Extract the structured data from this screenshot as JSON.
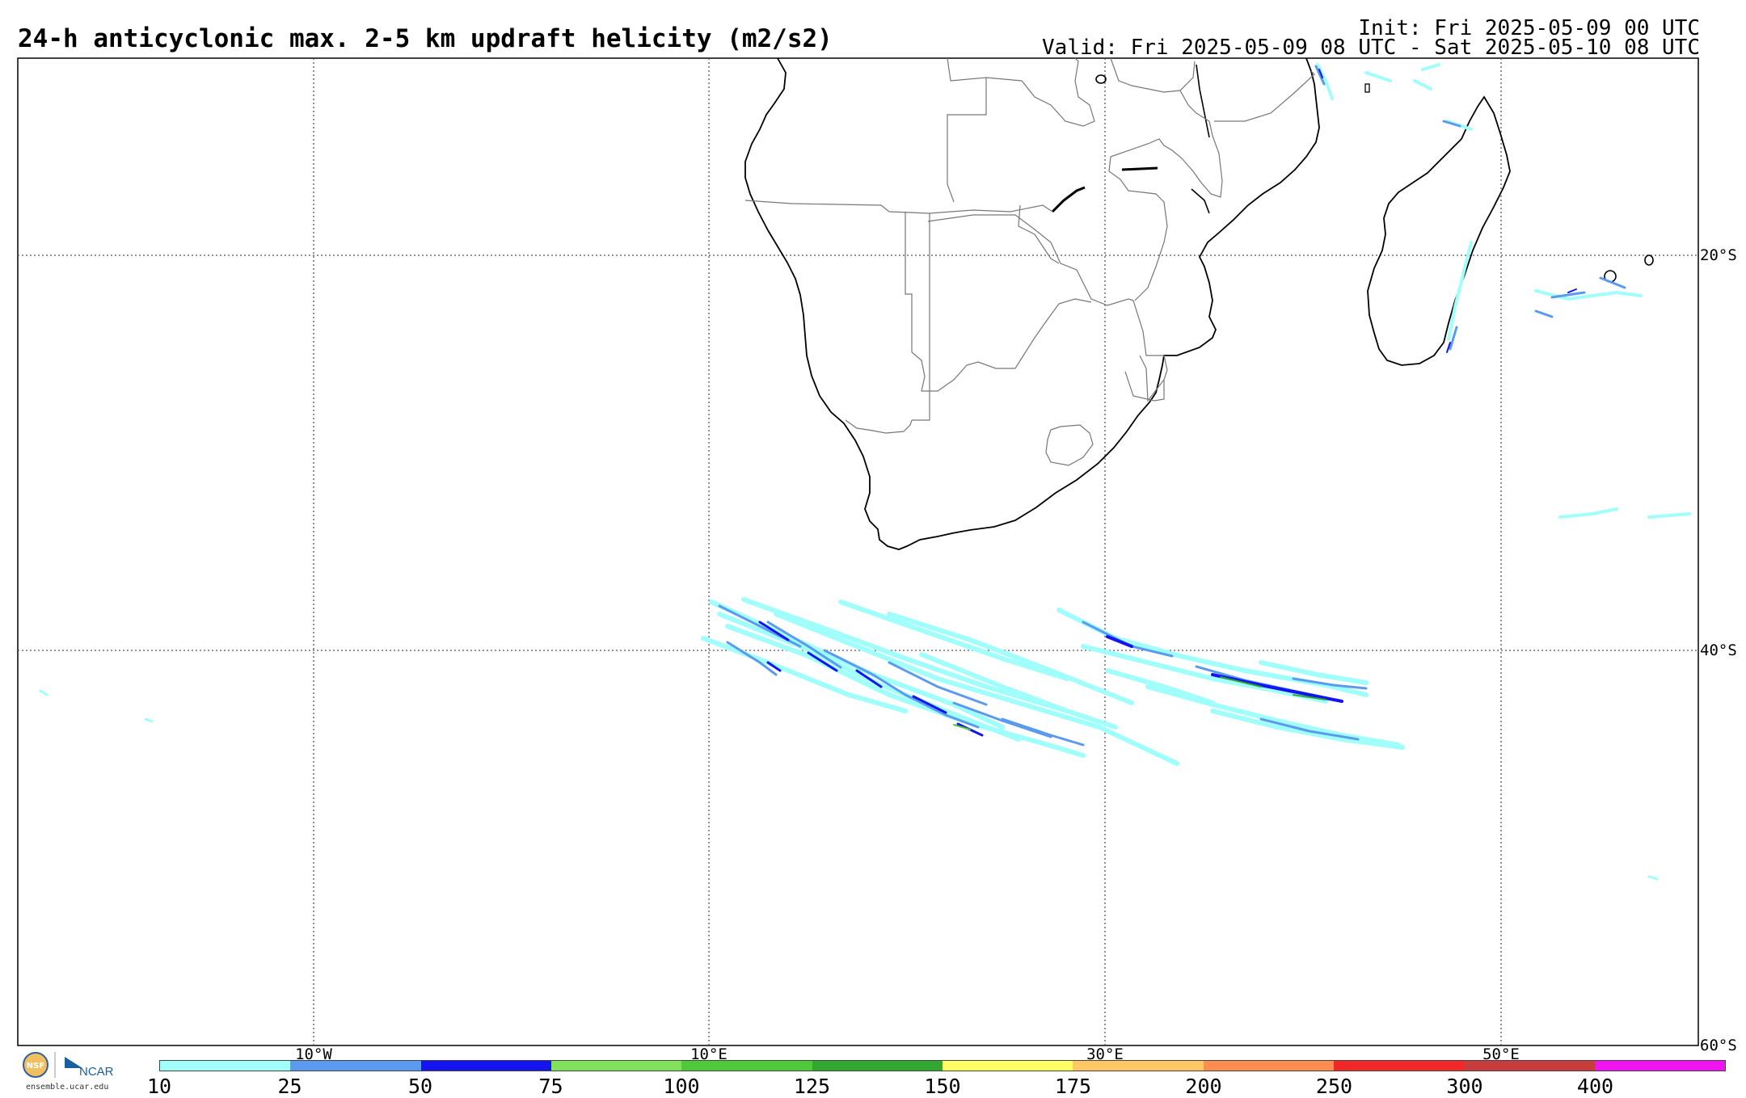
{
  "header": {
    "title": "24-h anticyclonic max. 2-5 km updraft helicity (m2/s2)",
    "init": "Init: Fri 2025-05-09 00 UTC",
    "valid": "Valid: Fri 2025-05-09 08 UTC - Sat 2025-05-10 08 UTC"
  },
  "map": {
    "lat_labels": [
      "20°S",
      "40°S",
      "60°S"
    ],
    "lon_labels": [
      "10°W",
      "10°E",
      "30°E",
      "50°E"
    ]
  },
  "colorbar": {
    "ticks": [
      "10",
      "25",
      "50",
      "75",
      "100",
      "125",
      "150",
      "175",
      "200",
      "250",
      "300",
      "400"
    ],
    "colors": [
      "#a0fffa",
      "#5a9bf0",
      "#1414f0",
      "#82e15a",
      "#50c83c",
      "#30a830",
      "#ffff64",
      "#ffc864",
      "#ff8c50",
      "#f02828",
      "#c83c3c",
      "#f014f0"
    ]
  },
  "logo": {
    "text": "NCAR",
    "url": "ensemble.ucar.edu"
  }
}
